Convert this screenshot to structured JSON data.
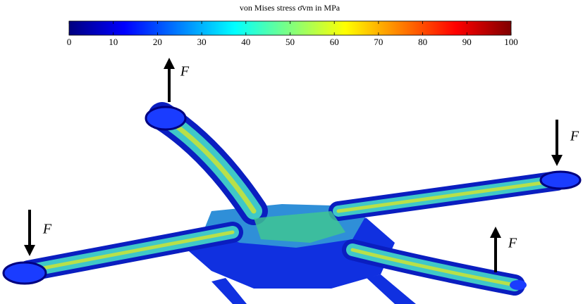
{
  "chart_data": {
    "type": "colorbar",
    "title": "von Mises stress σ̄vm in MPa",
    "xlim": [
      0,
      100
    ],
    "xticks": [
      0,
      10,
      20,
      30,
      40,
      50,
      60,
      70,
      80,
      90,
      100
    ],
    "colormap": [
      "#00007f",
      "#0000ff",
      "#007fff",
      "#00ffff",
      "#7fff7f",
      "#ffff00",
      "#ff7f00",
      "#ff0000",
      "#7f0000"
    ],
    "annotations": [
      "F",
      "F",
      "F",
      "F"
    ]
  }
}
